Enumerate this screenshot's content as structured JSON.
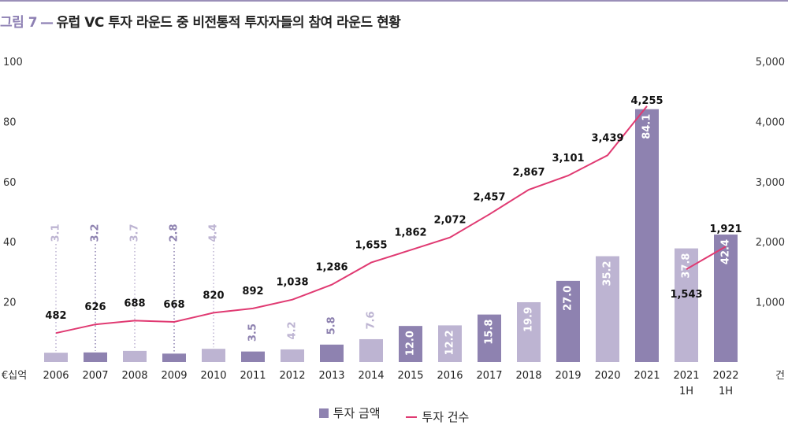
{
  "figure": {
    "label": "그림 7",
    "separator": "—",
    "title": "유럽 VC 투자 라운드 중 비전통적 투자자들의 참여 라운드 현황"
  },
  "colors": {
    "bar_dark": "#8e82b0",
    "bar_light": "#bdb4d2",
    "line": "#e03a72",
    "label_dark": "#8e82b0",
    "label_light": "#bdb4d2",
    "title_accent": "#8d7fb3"
  },
  "chart_data": {
    "type": "bar",
    "categories": [
      "2006",
      "2007",
      "2008",
      "2009",
      "2010",
      "2011",
      "2012",
      "2013",
      "2014",
      "2015",
      "2016",
      "2017",
      "2018",
      "2019",
      "2020",
      "2021",
      "2021\n1H",
      "2022\n1H"
    ],
    "left_axis": {
      "unit": "€십억",
      "ticks": [
        "20",
        "40",
        "60",
        "80",
        "100"
      ],
      "ylim": [
        0,
        100
      ]
    },
    "right_axis": {
      "unit": "건",
      "ticks": [
        "1,000",
        "2,000",
        "3,000",
        "4,000",
        "5,000"
      ],
      "ylim": [
        0,
        5000
      ]
    },
    "series": [
      {
        "name": "투자 금액",
        "type": "bar",
        "axis": "left",
        "values": [
          3.1,
          3.2,
          3.7,
          2.8,
          4.4,
          3.5,
          4.2,
          5.8,
          7.6,
          12.0,
          12.2,
          15.8,
          19.9,
          27.0,
          35.2,
          84.1,
          37.8,
          42.4
        ],
        "labels": [
          "3.1",
          "3.2",
          "3.7",
          "2.8",
          "4.4",
          "3.5",
          "4.2",
          "5.8",
          "7.6",
          "12.0",
          "12.2",
          "15.8",
          "19.9",
          "27.0",
          "35.2",
          "84.1",
          "37.8",
          "42.4"
        ],
        "shade": [
          "light",
          "dark",
          "light",
          "dark",
          "light",
          "dark",
          "light",
          "dark",
          "light",
          "dark",
          "light",
          "dark",
          "light",
          "dark",
          "light",
          "dark",
          "light",
          "dark"
        ]
      },
      {
        "name": "투자 건수",
        "type": "line",
        "axis": "right",
        "values": [
          482,
          626,
          688,
          668,
          820,
          892,
          1038,
          1286,
          1655,
          1862,
          2072,
          2457,
          2867,
          3101,
          3439,
          4255,
          1543,
          1921
        ],
        "labels": [
          "482",
          "626",
          "688",
          "668",
          "820",
          "892",
          "1,038",
          "1,286",
          "1,655",
          "1,862",
          "2,072",
          "2,457",
          "2,867",
          "3,101",
          "3,439",
          "4,255",
          "1,543",
          "1,921"
        ],
        "segments": [
          [
            0,
            15
          ],
          [
            16,
            17
          ]
        ]
      }
    ],
    "grid": false,
    "legend_position": "bottom"
  },
  "legend": [
    {
      "label": "투자 금액",
      "kind": "bar"
    },
    {
      "label": "투자 건수",
      "kind": "line"
    }
  ]
}
